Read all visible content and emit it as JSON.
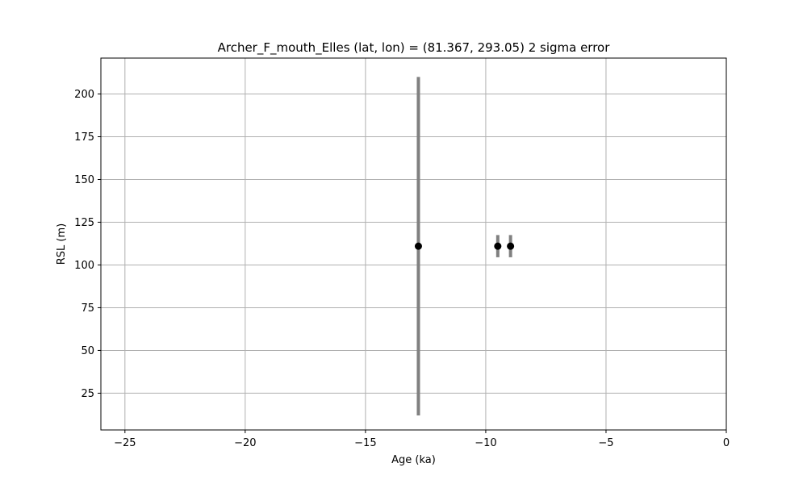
{
  "chart_data": {
    "type": "scatter",
    "title": "Archer_F_mouth_Elles (lat, lon) = (81.367, 293.05)  2 sigma error",
    "xlabel": "Age (ka)",
    "ylabel": "RSL (m)",
    "xlim": [
      -26,
      0
    ],
    "ylim": [
      3.5,
      221
    ],
    "xticks": [
      -25,
      -20,
      -15,
      -10,
      -5,
      0
    ],
    "xtick_labels": [
      "−25",
      "−20",
      "−15",
      "−10",
      "−5",
      "0"
    ],
    "yticks": [
      25,
      50,
      75,
      100,
      125,
      150,
      175,
      200
    ],
    "ytick_labels": [
      "25",
      "50",
      "75",
      "100",
      "125",
      "150",
      "175",
      "200"
    ],
    "grid": true,
    "colors": {
      "point": "#000000",
      "errorbar": "#808080",
      "grid": "#b0b0b0"
    },
    "points": [
      {
        "x": -12.8,
        "y": 111,
        "y_low": 12,
        "y_high": 210
      },
      {
        "x": -9.5,
        "y": 111,
        "y_low": 104.5,
        "y_high": 117.5
      },
      {
        "x": -8.97,
        "y": 111,
        "y_low": 104.5,
        "y_high": 117.5
      }
    ]
  }
}
